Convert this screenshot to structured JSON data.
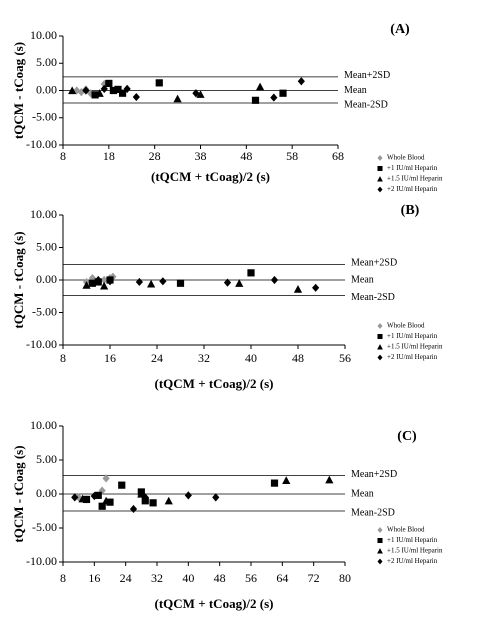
{
  "chart_data": [
    {
      "type": "scatter",
      "title": "(A)",
      "x_label": "(tQCM + tCoag)/2  (s)",
      "y_label": "tQCM - tCoag  (s)",
      "xlim": [
        8,
        68
      ],
      "xticks": [
        8,
        18,
        28,
        38,
        48,
        58,
        68
      ],
      "ylim": [
        -10,
        10
      ],
      "yticks": [
        {
          "value": 10,
          "label": "10.00"
        },
        {
          "value": 5,
          "label": "5.00"
        },
        {
          "value": 0,
          "label": "0.00"
        },
        {
          "value": -5,
          "label": "-5.00"
        },
        {
          "value": -10,
          "label": "-10.00"
        }
      ],
      "reference_lines": [
        {
          "label": "Mean+2SD",
          "value": 2.5
        },
        {
          "label": "Mean",
          "value": 0
        },
        {
          "label": "Mean-2SD",
          "value": -2.3
        }
      ],
      "legend": "right",
      "series": [
        {
          "name": "Whole Blood",
          "color": "#999999",
          "marker": "diamond",
          "x": [
            11,
            12,
            13,
            14,
            17
          ],
          "values": [
            0,
            -0.3,
            0.2,
            -0.5,
            1.2
          ]
        },
        {
          "name": "+1 IU/ml Heparin",
          "color": "#000000",
          "marker": "square",
          "x": [
            15,
            18,
            19,
            20,
            21,
            29,
            50,
            56
          ],
          "values": [
            -0.8,
            1.3,
            0,
            0.2,
            -0.5,
            1.4,
            -1.8,
            -0.5
          ]
        },
        {
          "name": "+1.5 IU/ml Heparin",
          "color": "#000000",
          "marker": "triangle",
          "x": [
            10,
            16,
            33,
            38,
            51
          ],
          "values": [
            0,
            -0.5,
            -1.5,
            -0.7,
            0.7
          ]
        },
        {
          "name": "+2 IU/ml Heparin",
          "color": "#000000",
          "marker": "diamond",
          "x": [
            13,
            17,
            22,
            24,
            37,
            54,
            60
          ],
          "values": [
            0,
            0.3,
            0.3,
            -1.2,
            -0.5,
            -1.3,
            1.7
          ]
        }
      ]
    },
    {
      "type": "scatter",
      "title": "(B)",
      "x_label": "(tQCM + tCoag)/2  (s)",
      "y_label": "tQCM - tCoag  (s)",
      "xlim": [
        8,
        56
      ],
      "xticks": [
        8,
        16,
        24,
        32,
        40,
        48,
        56
      ],
      "ylim": [
        -10,
        10
      ],
      "yticks": [
        {
          "value": 10,
          "label": "10.00"
        },
        {
          "value": 5,
          "label": "5.00"
        },
        {
          "value": 0,
          "label": "0.00"
        },
        {
          "value": -5,
          "label": "-5.00"
        },
        {
          "value": -10,
          "label": "-10.00"
        }
      ],
      "reference_lines": [
        {
          "label": "Mean+2SD",
          "value": 2.4
        },
        {
          "label": "Mean",
          "value": 0
        },
        {
          "label": "Mean-2SD",
          "value": -2.4
        }
      ],
      "legend": "right",
      "series": [
        {
          "name": "Whole Blood",
          "color": "#999999",
          "marker": "diamond",
          "x": [
            12,
            13,
            15,
            16,
            16.5
          ],
          "values": [
            -0.3,
            0.3,
            0,
            0.3,
            0.5
          ]
        },
        {
          "name": "+1 IU/ml Heparin",
          "color": "#000000",
          "marker": "square",
          "x": [
            13,
            14,
            16,
            28,
            40
          ],
          "values": [
            -0.5,
            -0.3,
            0,
            -0.5,
            1.1
          ]
        },
        {
          "name": "+1.5 IU/ml Heparin",
          "color": "#000000",
          "marker": "triangle",
          "x": [
            12,
            15,
            23,
            38,
            48
          ],
          "values": [
            -0.8,
            -0.9,
            -0.6,
            -0.5,
            -1.4
          ]
        },
        {
          "name": "+2 IU/ml Heparin",
          "color": "#000000",
          "marker": "diamond",
          "x": [
            14,
            16,
            21,
            25,
            36,
            44,
            51
          ],
          "values": [
            0,
            -0.2,
            -0.3,
            -0.2,
            -0.4,
            0,
            -1.2
          ]
        }
      ]
    },
    {
      "type": "scatter",
      "title": "(C)",
      "x_label": "(tQCM + tCoag)/2  (s)",
      "y_label": "tQCM - tCoag  (s)",
      "xlim": [
        8,
        80
      ],
      "xticks": [
        8,
        16,
        24,
        32,
        40,
        48,
        56,
        64,
        72,
        80
      ],
      "ylim": [
        -10,
        10
      ],
      "yticks": [
        {
          "value": 10,
          "label": "10.00"
        },
        {
          "value": 5,
          "label": "5.00"
        },
        {
          "value": 0,
          "label": "0.00"
        },
        {
          "value": -5,
          "label": "-5.00"
        },
        {
          "value": -10,
          "label": "-10.00"
        }
      ],
      "reference_lines": [
        {
          "label": "Mean+2SD",
          "value": 2.7
        },
        {
          "label": "Mean",
          "value": 0
        },
        {
          "label": "Mean-2SD",
          "value": -2.5
        }
      ],
      "legend": "right",
      "series": [
        {
          "name": "Whole Blood",
          "color": "#999999",
          "marker": "diamond",
          "x": [
            12,
            14,
            16,
            18,
            19
          ],
          "values": [
            -0.5,
            -0.8,
            -0.3,
            0.5,
            2.3
          ]
        },
        {
          "name": "+1 IU/ml Heparin",
          "color": "#000000",
          "marker": "square",
          "x": [
            14,
            17,
            18,
            20,
            23,
            28,
            29,
            31,
            62
          ],
          "values": [
            -0.8,
            -0.2,
            -1.8,
            -1.2,
            1.3,
            0.3,
            -1,
            -1.3,
            1.6
          ]
        },
        {
          "name": "+1.5 IU/ml Heparin",
          "color": "#000000",
          "marker": "triangle",
          "x": [
            13,
            19,
            28,
            35,
            65,
            76
          ],
          "values": [
            -0.7,
            -1,
            0,
            -1,
            2,
            2.1
          ]
        },
        {
          "name": "+2 IU/ml Heparin",
          "color": "#000000",
          "marker": "diamond",
          "x": [
            11,
            16,
            26,
            29,
            40,
            47
          ],
          "values": [
            -0.5,
            -0.3,
            -2.2,
            -0.5,
            -0.2,
            -0.5
          ]
        }
      ]
    }
  ]
}
